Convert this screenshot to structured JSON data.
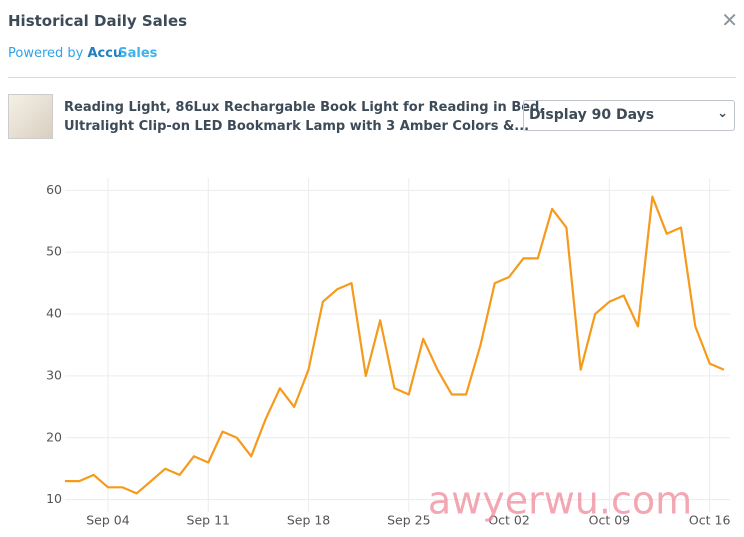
{
  "header": {
    "title": "Historical Daily Sales",
    "powered_by": "Powered by",
    "brand_a": "Accu",
    "brand_b": "Sales"
  },
  "product": {
    "title_line1": "Reading Light, 86Lux Rechargable Book Light for Reading in Bed,",
    "title_line2": "Ultralight Clip-on LED Bookmark Lamp with 3 Amber Colors &..."
  },
  "range_select": "Display 90 Days",
  "watermark": "awyerwu.com",
  "chart_data": {
    "type": "line",
    "color": "#f59a1b",
    "grid": true,
    "categories": [
      null,
      null,
      null,
      "Sep 04",
      null,
      null,
      null,
      null,
      null,
      null,
      "Sep 11",
      null,
      null,
      null,
      null,
      null,
      null,
      "Sep 18",
      null,
      null,
      null,
      null,
      null,
      null,
      "Sep 25",
      null,
      null,
      null,
      null,
      null,
      null,
      "Oct 02",
      null,
      null,
      null,
      null,
      null,
      null,
      "Oct 09",
      null,
      null,
      null,
      null,
      null,
      null,
      "Oct 16",
      null
    ],
    "values": [
      13,
      13,
      14,
      12,
      12,
      11,
      13,
      15,
      14,
      17,
      16,
      21,
      20,
      17,
      23,
      28,
      25,
      31,
      42,
      44,
      45,
      30,
      39,
      28,
      27,
      36,
      31,
      27,
      27,
      35,
      45,
      46,
      49,
      49,
      57,
      54,
      31,
      40,
      42,
      43,
      38,
      59,
      53,
      54,
      38,
      32,
      31
    ],
    "ylim": [
      8,
      62
    ],
    "yticks": [
      10,
      20,
      30,
      40,
      50,
      60
    ]
  }
}
